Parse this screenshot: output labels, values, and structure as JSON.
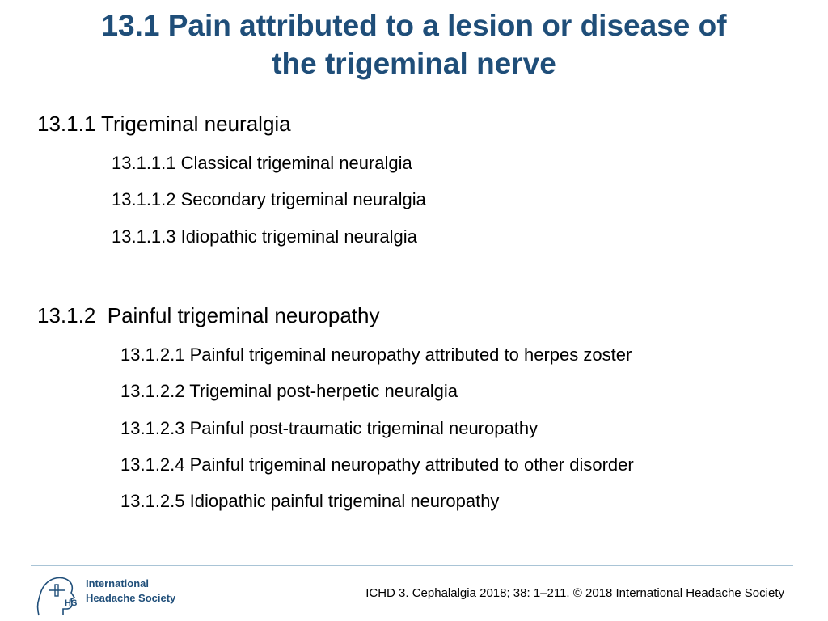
{
  "title_line1": "13.1 Pain attributed to a lesion or disease of",
  "title_line2": "the trigeminal nerve",
  "sections": [
    {
      "heading": "13.1.1 Trigeminal neuralgia",
      "items": [
        "13.1.1.1 Classical trigeminal neuralgia",
        "13.1.1.2 Secondary trigeminal neuralgia",
        "13.1.1.3 Idiopathic trigeminal neuralgia"
      ]
    },
    {
      "heading": "13.1.2  Painful trigeminal neuropathy",
      "items": [
        "13.1.2.1 Painful trigeminal neuropathy attributed to herpes zoster",
        "13.1.2.2 Trigeminal post-herpetic neuralgia",
        "13.1.2.3 Painful post-traumatic trigeminal neuropathy",
        "13.1.2.4 Painful trigeminal neuropathy attributed to other disorder",
        "13.1.2.5 Idiopathic painful trigeminal neuropathy"
      ]
    }
  ],
  "footer": {
    "logo_line1": "International",
    "logo_line2": "Headache Society",
    "logo_icon": "ihs-profile-logo-icon",
    "citation": "ICHD 3. Cephalalgia 2018; 38: 1–211. © 2018 International Headache Society"
  },
  "colors": {
    "title": "#1f4e79",
    "rule": "#a9c4d6",
    "logo": "#1f4e79"
  }
}
